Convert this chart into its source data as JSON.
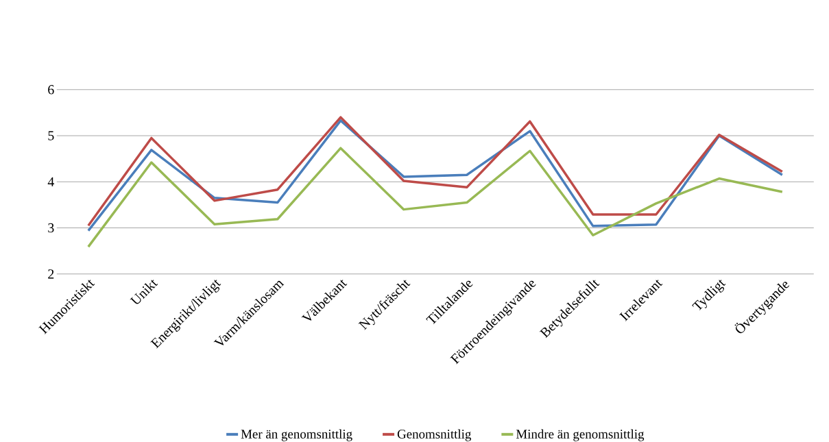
{
  "chart_data": {
    "type": "line",
    "categories": [
      "Humoristiskt",
      "Unikt",
      "Energirikt/livligt",
      "Varm/känslosam",
      "Välbekant",
      "Nytt/fräscht",
      "Tilltalande",
      "Förtroendeingivande",
      "Betydelsefullt",
      "Irrelevant",
      "Tydligt",
      "Övertygande"
    ],
    "series": [
      {
        "name": "Mer än genomsnittlig",
        "color": "#4a7ebb",
        "values": [
          2.94,
          4.69,
          3.65,
          3.55,
          5.33,
          4.11,
          4.15,
          5.1,
          3.04,
          3.07,
          5.0,
          4.15
        ]
      },
      {
        "name": "Genomsnittlig",
        "color": "#be4b48",
        "values": [
          3.05,
          4.95,
          3.59,
          3.83,
          5.4,
          4.02,
          3.88,
          5.31,
          3.29,
          3.29,
          5.02,
          4.22
        ]
      },
      {
        "name": "Mindre än genomsnittlig",
        "color": "#98b954",
        "values": [
          2.59,
          4.42,
          3.08,
          3.19,
          4.73,
          3.4,
          3.55,
          4.67,
          2.84,
          3.53,
          4.07,
          3.78
        ]
      }
    ],
    "ylim": [
      2,
      6
    ],
    "yticks": [
      2,
      3,
      4,
      5,
      6
    ],
    "grid": "y",
    "legend": "bottom",
    "marker": "none",
    "line_style": "solid"
  }
}
